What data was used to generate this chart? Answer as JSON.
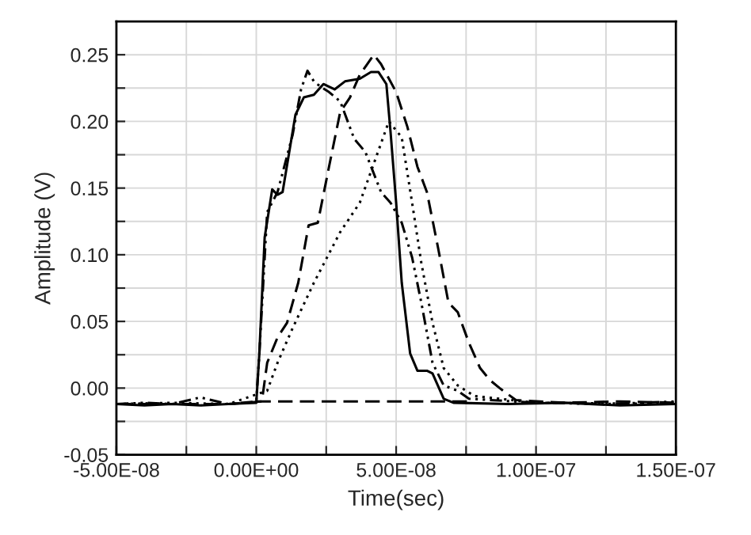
{
  "chart_data": {
    "type": "line",
    "xlabel": "Time(sec)",
    "ylabel": "Amplitude (V)",
    "xlim": [
      -5e-08,
      1.5e-07
    ],
    "xticks": [
      {
        "value": -5e-08,
        "label": "-5.00E-08"
      },
      {
        "value": -2.5e-08,
        "label": null
      },
      {
        "value": 0,
        "label": "0.00E+00"
      },
      {
        "value": 2.5e-08,
        "label": null
      },
      {
        "value": 5e-08,
        "label": "5.00E-08"
      },
      {
        "value": 7.5e-08,
        "label": null
      },
      {
        "value": 1e-07,
        "label": "1.00E-07"
      },
      {
        "value": 1.25e-07,
        "label": null
      },
      {
        "value": 1.5e-07,
        "label": "1.50E-07"
      }
    ],
    "ylim": [
      -0.05,
      0.275
    ],
    "yticks": [
      {
        "value": -0.05,
        "label": "-0.05"
      },
      {
        "value": -0.025,
        "label": null
      },
      {
        "value": 0,
        "label": "0.00"
      },
      {
        "value": 0.025,
        "label": null
      },
      {
        "value": 0.05,
        "label": "0.05"
      },
      {
        "value": 0.075,
        "label": null
      },
      {
        "value": 0.1,
        "label": "0.10"
      },
      {
        "value": 0.125,
        "label": null
      },
      {
        "value": 0.15,
        "label": "0.15"
      },
      {
        "value": 0.175,
        "label": null
      },
      {
        "value": 0.2,
        "label": "0.20"
      },
      {
        "value": 0.225,
        "label": null
      },
      {
        "value": 0.25,
        "label": "0.25"
      }
    ],
    "grid": true,
    "series": [
      {
        "color": "#000000",
        "line_style": "solid",
        "x": [
          -5e-08,
          -4e-08,
          -3e-08,
          -2e-08,
          -1e-08,
          0,
          1.1e-09,
          3e-09,
          5.7e-09,
          7.6e-09,
          9.4e-09,
          1.4e-08,
          1.7e-08,
          2.06e-08,
          2.4e-08,
          2.8e-08,
          3.17e-08,
          3.7e-08,
          4.1e-08,
          4.37e-08,
          4.65e-08,
          4.8e-08,
          5e-08,
          5.2e-08,
          5.5e-08,
          5.76e-08,
          6.1e-08,
          6.3e-08,
          6.7e-08,
          7.05e-08,
          9e-08,
          1.1e-07,
          1.3e-07,
          1.5e-07
        ],
        "values": [
          -0.012,
          -0.013,
          -0.012,
          -0.013,
          -0.012,
          -0.011,
          0.026,
          0.113,
          0.149,
          0.145,
          0.147,
          0.205,
          0.218,
          0.22,
          0.228,
          0.224,
          0.23,
          0.232,
          0.237,
          0.237,
          0.228,
          0.192,
          0.139,
          0.079,
          0.026,
          0.013,
          0.013,
          0.011,
          -0.008,
          -0.011,
          -0.012,
          -0.011,
          -0.013,
          -0.012
        ]
      },
      {
        "color": "#000000",
        "line_style": "dashdot",
        "x": [
          -5e-08,
          -4e-08,
          -3e-08,
          -2e-08,
          -1e-08,
          0,
          1.1e-09,
          3.9e-09,
          7.6e-09,
          1.3e-08,
          1.6e-08,
          1.83e-08,
          2.06e-08,
          2.3e-08,
          2.6e-08,
          3e-08,
          3.5e-08,
          3.9e-08,
          4.46e-08,
          4.8e-08,
          5.2e-08,
          5.57e-08,
          5.9e-08,
          6.3e-08,
          6.7e-08,
          7.2e-08,
          7.6e-08,
          1e-07,
          1.25e-07,
          1.5e-07
        ],
        "values": [
          -0.012,
          -0.011,
          -0.012,
          -0.007,
          -0.012,
          -0.01,
          0.026,
          0.132,
          0.147,
          0.19,
          0.224,
          0.238,
          0.23,
          0.226,
          0.222,
          0.215,
          0.187,
          0.177,
          0.147,
          0.139,
          0.124,
          0.098,
          0.064,
          0.019,
          0.002,
          -0.002,
          -0.008,
          -0.011,
          -0.012,
          -0.01
        ]
      },
      {
        "color": "#000000",
        "line_style": "dashed",
        "x": [
          -5e-08,
          -3e-08,
          -1e-08,
          2e-09,
          3.9e-09,
          7.6e-09,
          1.1e-08,
          1.5e-08,
          1.87e-08,
          2.2e-08,
          2.6e-08,
          3e-08,
          3.35e-08,
          3.7e-08,
          4.2e-08,
          4.46e-08,
          5e-08,
          5.4e-08,
          5.76e-08,
          6.1e-08,
          6.5e-08,
          6.87e-08,
          7.2e-08,
          7.6e-08,
          8e-08,
          8.35e-08,
          8.7e-08,
          9.28e-08,
          1.1e-07,
          1.3e-07,
          1.5e-07
        ],
        "values": [
          -0.012,
          -0.012,
          -0.012,
          -0.01,
          0.019,
          0.038,
          0.049,
          0.079,
          0.122,
          0.124,
          0.166,
          0.207,
          0.218,
          0.235,
          0.25,
          0.243,
          0.222,
          0.196,
          0.166,
          0.147,
          0.105,
          0.064,
          0.057,
          0.034,
          0.015,
          0.006,
          0.0,
          -0.009,
          -0.011,
          -0.01,
          -0.011
        ]
      },
      {
        "color": "#000000",
        "line_style": "dotted",
        "x": [
          -5e-08,
          -3e-08,
          -1e-08,
          1.1e-09,
          3.9e-09,
          7.6e-09,
          1.3e-08,
          2.06e-08,
          3e-08,
          3.7e-08,
          4.28e-08,
          4.74e-08,
          5.2e-08,
          5.57e-08,
          5.9e-08,
          6.3e-08,
          6.7e-08,
          7.2e-08,
          7.8e-08,
          1e-07,
          1.5e-07
        ],
        "values": [
          -0.012,
          -0.011,
          -0.012,
          -0.004,
          -0.002,
          0.019,
          0.045,
          0.079,
          0.117,
          0.139,
          0.173,
          0.2,
          0.188,
          0.139,
          0.094,
          0.049,
          0.015,
          0.002,
          -0.006,
          -0.011,
          -0.012
        ]
      },
      {
        "color": "#000000",
        "line_style": "dashed",
        "x": [
          0,
          7.6e-08
        ],
        "values": [
          -0.01,
          -0.01
        ]
      }
    ]
  }
}
